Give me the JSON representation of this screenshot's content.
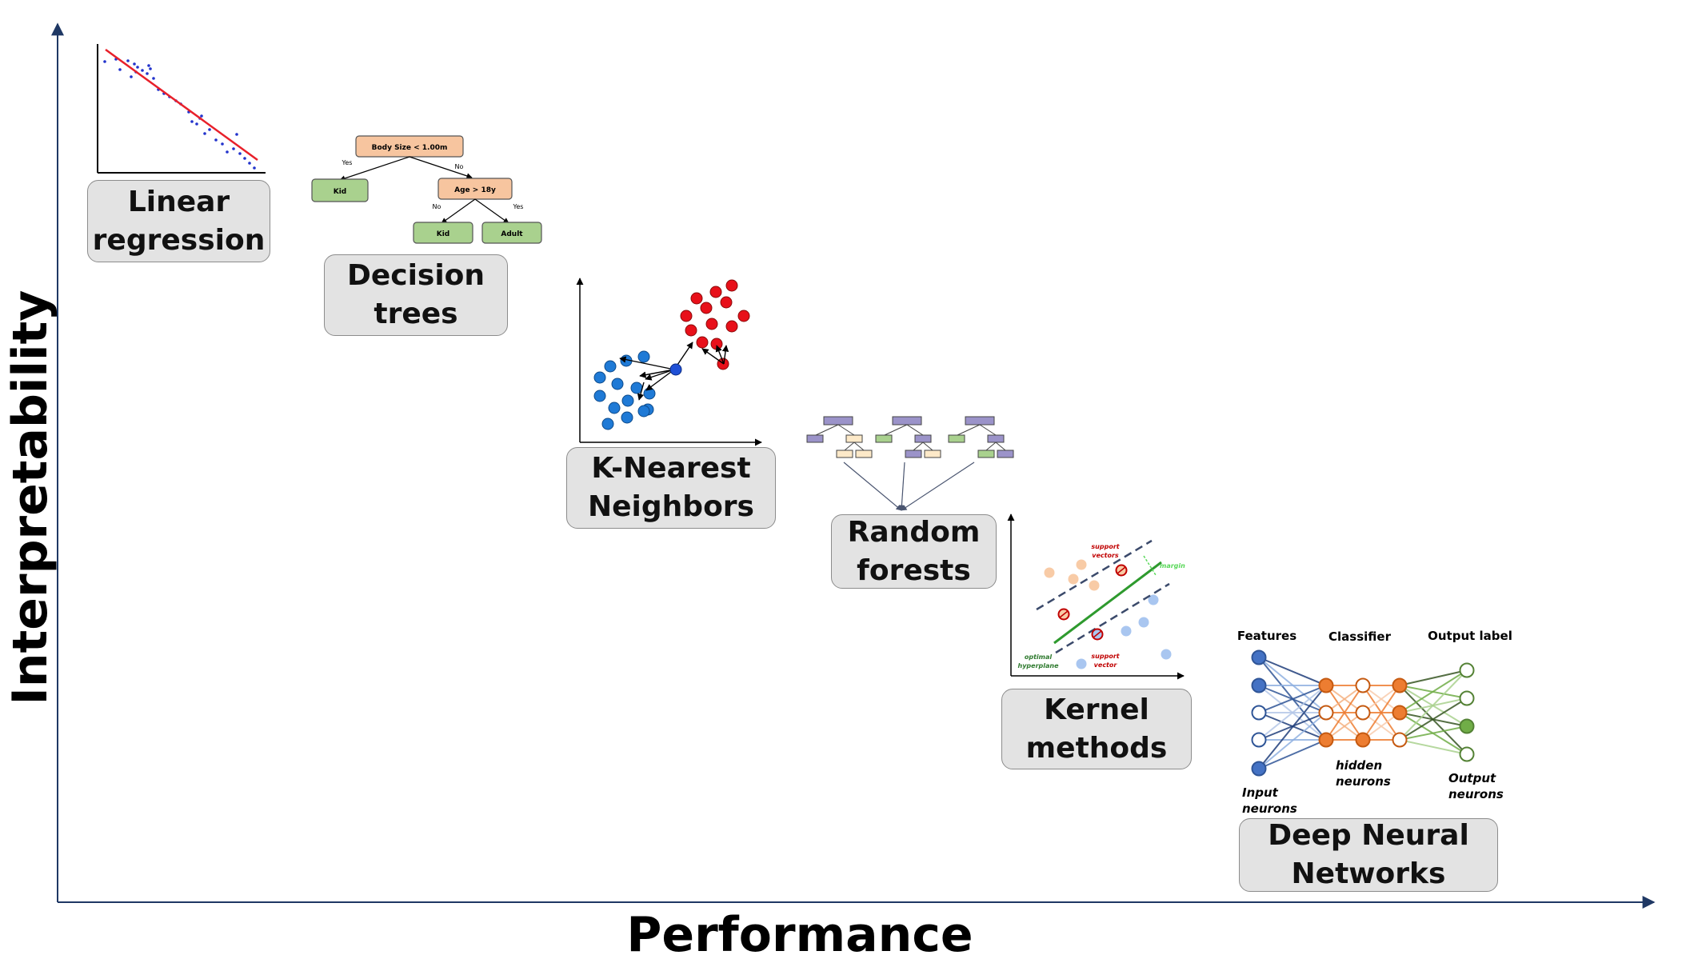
{
  "axes": {
    "x_title": "Performance",
    "y_title": "Interpretability"
  },
  "models": [
    {
      "id": "linear",
      "label_line1": "Linear",
      "label_line2": "regression"
    },
    {
      "id": "trees",
      "label_line1": "Decision",
      "label_line2": "trees"
    },
    {
      "id": "knn",
      "label_line1": "K-Nearest",
      "label_line2": "Neighbors"
    },
    {
      "id": "forest",
      "label_line1": "Random",
      "label_line2": "forests"
    },
    {
      "id": "kernel",
      "label_line1": "Kernel",
      "label_line2": "methods"
    },
    {
      "id": "dnn",
      "label_line1": "Deep Neural",
      "label_line2": "Networks"
    }
  ],
  "decision_tree": {
    "root": "Body Size < 1.00m",
    "left_edge": "Yes",
    "right_edge": "No",
    "left_leaf": "Kid",
    "right_node": "Age > 18y",
    "right_left_edge": "No",
    "right_right_edge": "Yes",
    "leaf_kid": "Kid",
    "leaf_adult": "Adult"
  },
  "svm": {
    "support_vectors_top": "support vectors",
    "margin": "margin",
    "support_vector_bottom": "support vector",
    "hyperplane": "optimal hyperplane"
  },
  "neural_net": {
    "features": "Features",
    "classifier": "Classifier",
    "output_label": "Output label",
    "input_neurons": "Input neurons",
    "hidden_neurons": "hidden neurons",
    "output_neurons": "Output neurons"
  },
  "colors": {
    "box_fill": "#e3e3e3",
    "regression_line": "#e8202a",
    "tree_root": "#f7c59f",
    "tree_leaf": "#a9d18e",
    "knn_blue": "#1f7ad6",
    "knn_red": "#e8101a",
    "forest_purple": "#9b93c9",
    "forest_cream": "#fde9c8",
    "forest_green": "#a9d18e",
    "svm_orange": "#f8cba6",
    "svm_blue": "#a9c6f0",
    "svm_hyperplane": "#2e9a2e",
    "nn_blue": "#4472c4",
    "nn_orange": "#ed7d31",
    "nn_green": "#70ad47"
  }
}
